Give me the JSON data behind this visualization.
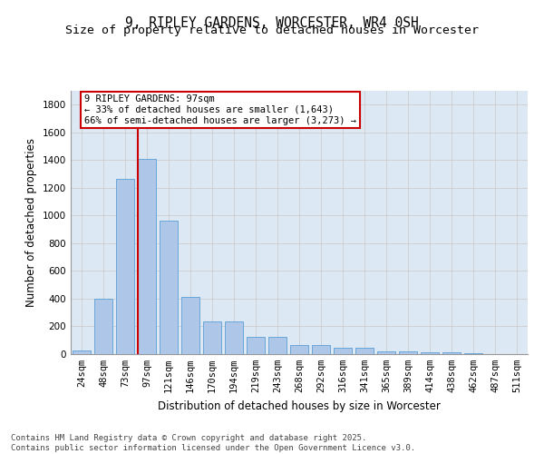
{
  "title1": "9, RIPLEY GARDENS, WORCESTER, WR4 0SH",
  "title2": "Size of property relative to detached houses in Worcester",
  "xlabel": "Distribution of detached houses by size in Worcester",
  "ylabel": "Number of detached properties",
  "categories": [
    "24sqm",
    "48sqm",
    "73sqm",
    "97sqm",
    "121sqm",
    "146sqm",
    "170sqm",
    "194sqm",
    "219sqm",
    "243sqm",
    "268sqm",
    "292sqm",
    "316sqm",
    "341sqm",
    "365sqm",
    "389sqm",
    "414sqm",
    "438sqm",
    "462sqm",
    "487sqm",
    "511sqm"
  ],
  "values": [
    25,
    400,
    1265,
    1410,
    965,
    415,
    235,
    235,
    125,
    125,
    65,
    65,
    45,
    45,
    20,
    20,
    15,
    10,
    5,
    3,
    0
  ],
  "bar_color": "#aec6e8",
  "bar_edge_color": "#5a9fd4",
  "vline_color": "#cc0000",
  "annotation_text": "9 RIPLEY GARDENS: 97sqm\n← 33% of detached houses are smaller (1,643)\n66% of semi-detached houses are larger (3,273) →",
  "annotation_box_edgecolor": "#cc0000",
  "ylim": [
    0,
    1900
  ],
  "yticks": [
    0,
    200,
    400,
    600,
    800,
    1000,
    1200,
    1400,
    1600,
    1800
  ],
  "grid_color": "#cccccc",
  "bg_color": "#dde8f5",
  "footnote": "Contains HM Land Registry data © Crown copyright and database right 2025.\nContains public sector information licensed under the Open Government Licence v3.0.",
  "title_fontsize": 10.5,
  "subtitle_fontsize": 9.5,
  "axis_label_fontsize": 8.5,
  "tick_fontsize": 7.5,
  "annotation_fontsize": 7.5,
  "footnote_fontsize": 6.5
}
